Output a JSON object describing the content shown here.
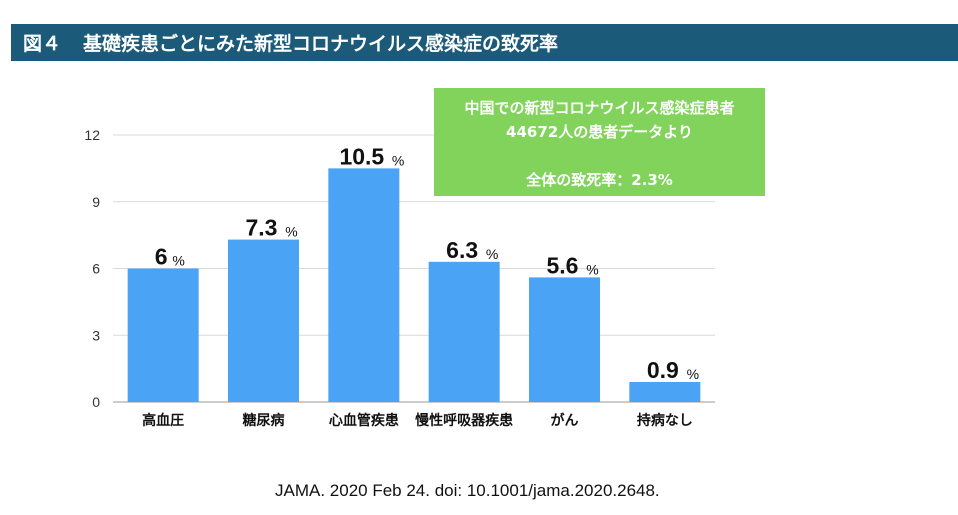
{
  "header": {
    "figure_no": "図４",
    "title": "基礎疾患ごとにみた新型コロナウイルス感染症の致死率"
  },
  "note": {
    "line1": "中国での新型コロナウイルス感染症患者",
    "line2": "44672人の患者データより",
    "line3": "全体の致死率：2.3%"
  },
  "citation": "JAMA. 2020 Feb 24. doi: 10.1001/jama.2020.2648.",
  "colors": {
    "bar": "#4aa3f4",
    "header_bg": "#1b5a78",
    "note_bg": "#81d35b"
  },
  "chart_data": {
    "type": "bar",
    "categories": [
      "高血圧",
      "糖尿病",
      "心血管疾患",
      "慢性呼吸器疾患",
      "がん",
      "持病なし"
    ],
    "values": [
      6,
      7.3,
      10.5,
      6.3,
      5.6,
      0.9
    ],
    "value_labels": [
      "6",
      "7.3",
      "10.5",
      "6.3",
      "5.6",
      "0.9"
    ],
    "unit": "%",
    "yticks": [
      0,
      3,
      6,
      9,
      12
    ],
    "ylim": [
      0,
      12
    ],
    "grid": true
  }
}
